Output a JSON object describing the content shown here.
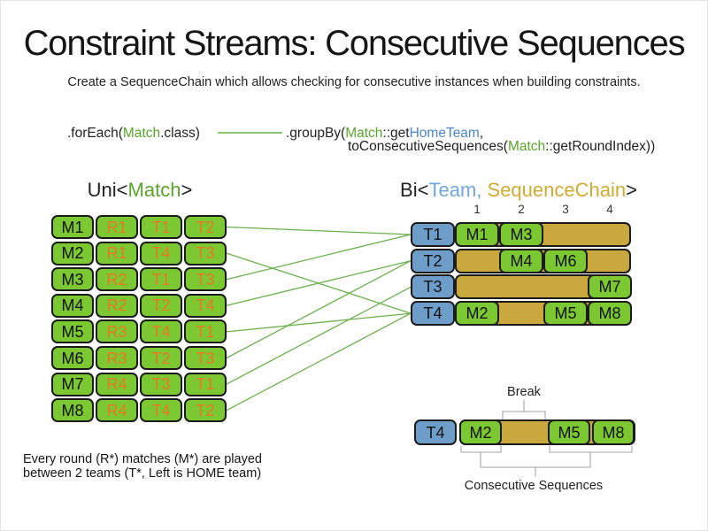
{
  "colors": {
    "black": "#222222",
    "green_text": "#5aa52c",
    "blue_code": "#4a86c8",
    "blue_team": "#6fa8dc",
    "gold_text": "#d1ab32",
    "orange": "#e8791e",
    "box_green": "#7cc832",
    "box_blue": "#6e9dc9",
    "box_gold": "#c9a83e",
    "line_green": "#6ab04c",
    "bracket_gray": "#b3b3b3"
  },
  "title": "Constraint Streams: Consecutive Sequences",
  "subtitle": "Create a SequenceChain which allows checking for consecutive instances when building constraints.",
  "code": {
    "foreach_runs": [
      {
        "t": ".forEach(",
        "c": "black"
      },
      {
        "t": "Match",
        "c": "green_text"
      },
      {
        "t": ".class)",
        "c": "black"
      }
    ],
    "groupby_line1_runs": [
      {
        "t": ".groupBy(",
        "c": "black"
      },
      {
        "t": "Match",
        "c": "green_text"
      },
      {
        "t": "::get",
        "c": "black"
      },
      {
        "t": "HomeTeam",
        "c": "blue_code"
      },
      {
        "t": ",",
        "c": "black"
      }
    ],
    "groupby_line2_runs": [
      {
        "t": "toConsecutiveSequences(",
        "c": "black"
      },
      {
        "t": "Match",
        "c": "green_text"
      },
      {
        "t": "::getRoundIndex))",
        "c": "black"
      }
    ]
  },
  "uni_table": {
    "heading_runs": [
      {
        "t": "Uni<",
        "c": "black"
      },
      {
        "t": "Match",
        "c": "green_text"
      },
      {
        "t": ">",
        "c": "black"
      }
    ],
    "rows": [
      {
        "match": "M1",
        "round": "R1",
        "home": "T1",
        "away": "T2"
      },
      {
        "match": "M2",
        "round": "R1",
        "home": "T4",
        "away": "T3"
      },
      {
        "match": "M3",
        "round": "R2",
        "home": "T1",
        "away": "T3"
      },
      {
        "match": "M4",
        "round": "R2",
        "home": "T2",
        "away": "T4"
      },
      {
        "match": "M5",
        "round": "R3",
        "home": "T4",
        "away": "T1"
      },
      {
        "match": "M6",
        "round": "R3",
        "home": "T2",
        "away": "T3"
      },
      {
        "match": "M7",
        "round": "R4",
        "home": "T3",
        "away": "T1"
      },
      {
        "match": "M8",
        "round": "R4",
        "home": "T4",
        "away": "T2"
      }
    ]
  },
  "bi_table": {
    "heading_runs": [
      {
        "t": "Bi<",
        "c": "black"
      },
      {
        "t": "Team,",
        "c": "blue_team"
      },
      {
        "t": " ",
        "c": "black"
      },
      {
        "t": "SequenceChain",
        "c": "gold_text"
      },
      {
        "t": ">",
        "c": "black"
      }
    ],
    "round_columns": [
      "1",
      "2",
      "3",
      "4"
    ],
    "rows": [
      {
        "team": "T1",
        "slots": [
          "M1",
          "M3",
          null,
          null
        ]
      },
      {
        "team": "T2",
        "slots": [
          null,
          "M4",
          "M6",
          null
        ]
      },
      {
        "team": "T3",
        "slots": [
          null,
          null,
          null,
          "M7"
        ]
      },
      {
        "team": "T4",
        "slots": [
          "M2",
          null,
          "M5",
          "M8"
        ]
      }
    ]
  },
  "sequence_detail": {
    "team": "T4",
    "slots": [
      "M2",
      null,
      "M5",
      "M8"
    ],
    "break_label": "Break",
    "sequences_label": "Consecutive Sequences"
  },
  "footnote": {
    "line1": "Every round (R*) matches (M*) are played",
    "line2": "between 2 teams (T*, Left is HOME team)"
  }
}
